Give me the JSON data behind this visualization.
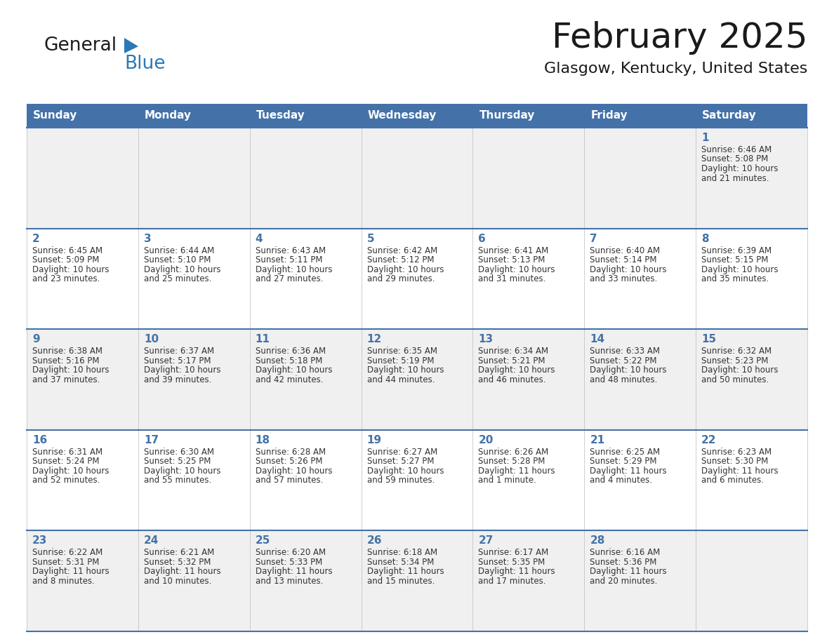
{
  "title": "February 2025",
  "subtitle": "Glasgow, Kentucky, United States",
  "header_color": "#4472a8",
  "header_text_color": "#ffffff",
  "cell_bg_odd": "#f0f0f0",
  "cell_bg_even": "#ffffff",
  "day_number_color": "#4472a8",
  "text_color": "#333333",
  "line_color": "#4472a8",
  "days_of_week": [
    "Sunday",
    "Monday",
    "Tuesday",
    "Wednesday",
    "Thursday",
    "Friday",
    "Saturday"
  ],
  "calendar_data": [
    [
      null,
      null,
      null,
      null,
      null,
      null,
      {
        "day": 1,
        "sunrise": "6:46 AM",
        "sunset": "5:08 PM",
        "daylight1": "10 hours",
        "daylight2": "and 21 minutes."
      }
    ],
    [
      {
        "day": 2,
        "sunrise": "6:45 AM",
        "sunset": "5:09 PM",
        "daylight1": "10 hours",
        "daylight2": "and 23 minutes."
      },
      {
        "day": 3,
        "sunrise": "6:44 AM",
        "sunset": "5:10 PM",
        "daylight1": "10 hours",
        "daylight2": "and 25 minutes."
      },
      {
        "day": 4,
        "sunrise": "6:43 AM",
        "sunset": "5:11 PM",
        "daylight1": "10 hours",
        "daylight2": "and 27 minutes."
      },
      {
        "day": 5,
        "sunrise": "6:42 AM",
        "sunset": "5:12 PM",
        "daylight1": "10 hours",
        "daylight2": "and 29 minutes."
      },
      {
        "day": 6,
        "sunrise": "6:41 AM",
        "sunset": "5:13 PM",
        "daylight1": "10 hours",
        "daylight2": "and 31 minutes."
      },
      {
        "day": 7,
        "sunrise": "6:40 AM",
        "sunset": "5:14 PM",
        "daylight1": "10 hours",
        "daylight2": "and 33 minutes."
      },
      {
        "day": 8,
        "sunrise": "6:39 AM",
        "sunset": "5:15 PM",
        "daylight1": "10 hours",
        "daylight2": "and 35 minutes."
      }
    ],
    [
      {
        "day": 9,
        "sunrise": "6:38 AM",
        "sunset": "5:16 PM",
        "daylight1": "10 hours",
        "daylight2": "and 37 minutes."
      },
      {
        "day": 10,
        "sunrise": "6:37 AM",
        "sunset": "5:17 PM",
        "daylight1": "10 hours",
        "daylight2": "and 39 minutes."
      },
      {
        "day": 11,
        "sunrise": "6:36 AM",
        "sunset": "5:18 PM",
        "daylight1": "10 hours",
        "daylight2": "and 42 minutes."
      },
      {
        "day": 12,
        "sunrise": "6:35 AM",
        "sunset": "5:19 PM",
        "daylight1": "10 hours",
        "daylight2": "and 44 minutes."
      },
      {
        "day": 13,
        "sunrise": "6:34 AM",
        "sunset": "5:21 PM",
        "daylight1": "10 hours",
        "daylight2": "and 46 minutes."
      },
      {
        "day": 14,
        "sunrise": "6:33 AM",
        "sunset": "5:22 PM",
        "daylight1": "10 hours",
        "daylight2": "and 48 minutes."
      },
      {
        "day": 15,
        "sunrise": "6:32 AM",
        "sunset": "5:23 PM",
        "daylight1": "10 hours",
        "daylight2": "and 50 minutes."
      }
    ],
    [
      {
        "day": 16,
        "sunrise": "6:31 AM",
        "sunset": "5:24 PM",
        "daylight1": "10 hours",
        "daylight2": "and 52 minutes."
      },
      {
        "day": 17,
        "sunrise": "6:30 AM",
        "sunset": "5:25 PM",
        "daylight1": "10 hours",
        "daylight2": "and 55 minutes."
      },
      {
        "day": 18,
        "sunrise": "6:28 AM",
        "sunset": "5:26 PM",
        "daylight1": "10 hours",
        "daylight2": "and 57 minutes."
      },
      {
        "day": 19,
        "sunrise": "6:27 AM",
        "sunset": "5:27 PM",
        "daylight1": "10 hours",
        "daylight2": "and 59 minutes."
      },
      {
        "day": 20,
        "sunrise": "6:26 AM",
        "sunset": "5:28 PM",
        "daylight1": "11 hours",
        "daylight2": "and 1 minute."
      },
      {
        "day": 21,
        "sunrise": "6:25 AM",
        "sunset": "5:29 PM",
        "daylight1": "11 hours",
        "daylight2": "and 4 minutes."
      },
      {
        "day": 22,
        "sunrise": "6:23 AM",
        "sunset": "5:30 PM",
        "daylight1": "11 hours",
        "daylight2": "and 6 minutes."
      }
    ],
    [
      {
        "day": 23,
        "sunrise": "6:22 AM",
        "sunset": "5:31 PM",
        "daylight1": "11 hours",
        "daylight2": "and 8 minutes."
      },
      {
        "day": 24,
        "sunrise": "6:21 AM",
        "sunset": "5:32 PM",
        "daylight1": "11 hours",
        "daylight2": "and 10 minutes."
      },
      {
        "day": 25,
        "sunrise": "6:20 AM",
        "sunset": "5:33 PM",
        "daylight1": "11 hours",
        "daylight2": "and 13 minutes."
      },
      {
        "day": 26,
        "sunrise": "6:18 AM",
        "sunset": "5:34 PM",
        "daylight1": "11 hours",
        "daylight2": "and 15 minutes."
      },
      {
        "day": 27,
        "sunrise": "6:17 AM",
        "sunset": "5:35 PM",
        "daylight1": "11 hours",
        "daylight2": "and 17 minutes."
      },
      {
        "day": 28,
        "sunrise": "6:16 AM",
        "sunset": "5:36 PM",
        "daylight1": "11 hours",
        "daylight2": "and 20 minutes."
      },
      null
    ]
  ]
}
